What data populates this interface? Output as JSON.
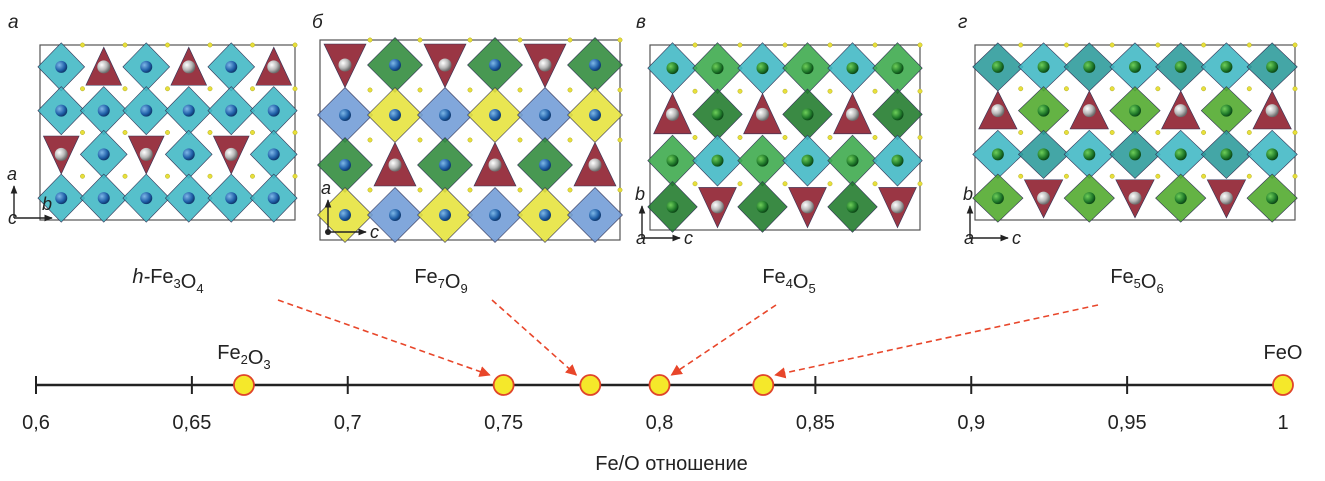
{
  "panels": [
    {
      "letter": "а",
      "formula_prefix": "h-",
      "formula_parts": [
        [
          "Fe",
          "3"
        ],
        [
          "O",
          "4"
        ]
      ],
      "axis_v": "a",
      "axis_h": "b",
      "axis_o": "c",
      "ratio": 0.75,
      "style": "hex"
    },
    {
      "letter": "б",
      "formula_prefix": "",
      "formula_parts": [
        [
          "Fe",
          "7"
        ],
        [
          "O",
          "9"
        ]
      ],
      "axis_v": "a",
      "axis_h": "c",
      "axis_o": "",
      "ratio": 0.7778,
      "style": "blue"
    },
    {
      "letter": "в",
      "formula_prefix": "",
      "formula_parts": [
        [
          "Fe",
          "4"
        ],
        [
          "O",
          "5"
        ]
      ],
      "axis_v": "b",
      "axis_h": "c",
      "axis_o": "a",
      "ratio": 0.8,
      "style": "green"
    },
    {
      "letter": "г",
      "formula_prefix": "",
      "formula_parts": [
        [
          "Fe",
          "5"
        ],
        [
          "O",
          "6"
        ]
      ],
      "axis_v": "b",
      "axis_h": "c",
      "axis_o": "a",
      "ratio": 0.8333,
      "style": "green2"
    }
  ],
  "axis": {
    "title": "Fe/O отношение",
    "min": 0.6,
    "max": 1.0,
    "ticks": [
      {
        "v": 0.6,
        "label": "0,6"
      },
      {
        "v": 0.65,
        "label": "0,65"
      },
      {
        "v": 0.7,
        "label": "0,7"
      },
      {
        "v": 0.75,
        "label": "0,75"
      },
      {
        "v": 0.8,
        "label": "0,8"
      },
      {
        "v": 0.85,
        "label": "0,85"
      },
      {
        "v": 0.9,
        "label": "0,9"
      },
      {
        "v": 0.95,
        "label": "0,95"
      },
      {
        "v": 1.0,
        "label": "1"
      }
    ]
  },
  "points": [
    {
      "v": 0.6667,
      "label_parts": [
        [
          "Fe",
          "2"
        ],
        [
          "O",
          "3"
        ]
      ]
    },
    {
      "v": 0.75,
      "label_parts": []
    },
    {
      "v": 0.7778,
      "label_parts": []
    },
    {
      "v": 0.8,
      "label_parts": []
    },
    {
      "v": 0.8333,
      "label_parts": []
    },
    {
      "v": 1.0,
      "label_parts": [
        [
          "FeO",
          ""
        ]
      ]
    }
  ],
  "colors": {
    "point_fill": "#f5e82a",
    "point_stroke": "#e0452a",
    "arrow": "#e8462a",
    "teal": "#3fb7c4",
    "red": "#8c1a2a",
    "green": "#4fa82a",
    "blue": "#6f9bd6",
    "yellow": "#e6e23a"
  }
}
